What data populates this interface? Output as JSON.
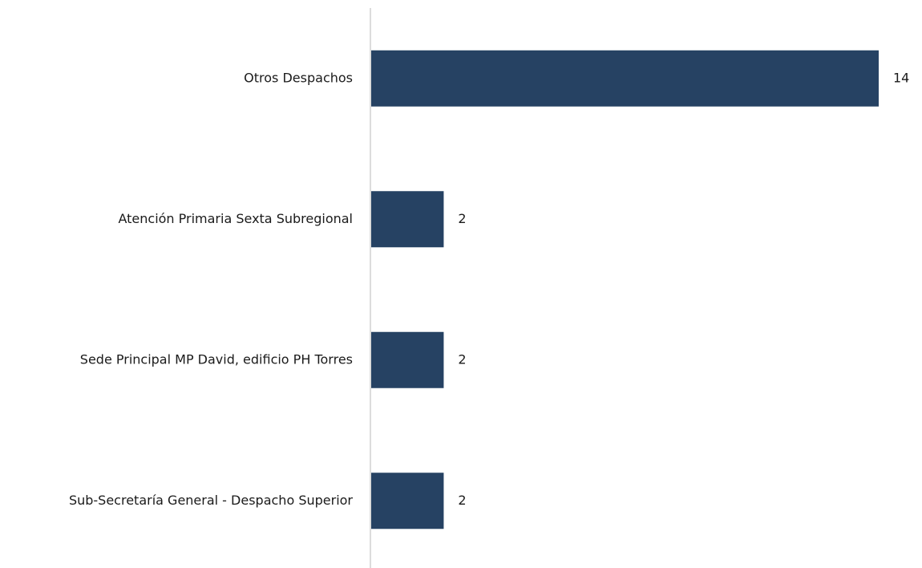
{
  "chart_data": {
    "type": "hbar",
    "categories": [
      "Otros Despachos",
      "Atención Primaria Sexta Subregional",
      "Sede Principal MP David, edificio PH Torres",
      "Sub-Secretaría General - Despacho Superior"
    ],
    "values": [
      14,
      2,
      2,
      2
    ],
    "color": "#264263"
  }
}
